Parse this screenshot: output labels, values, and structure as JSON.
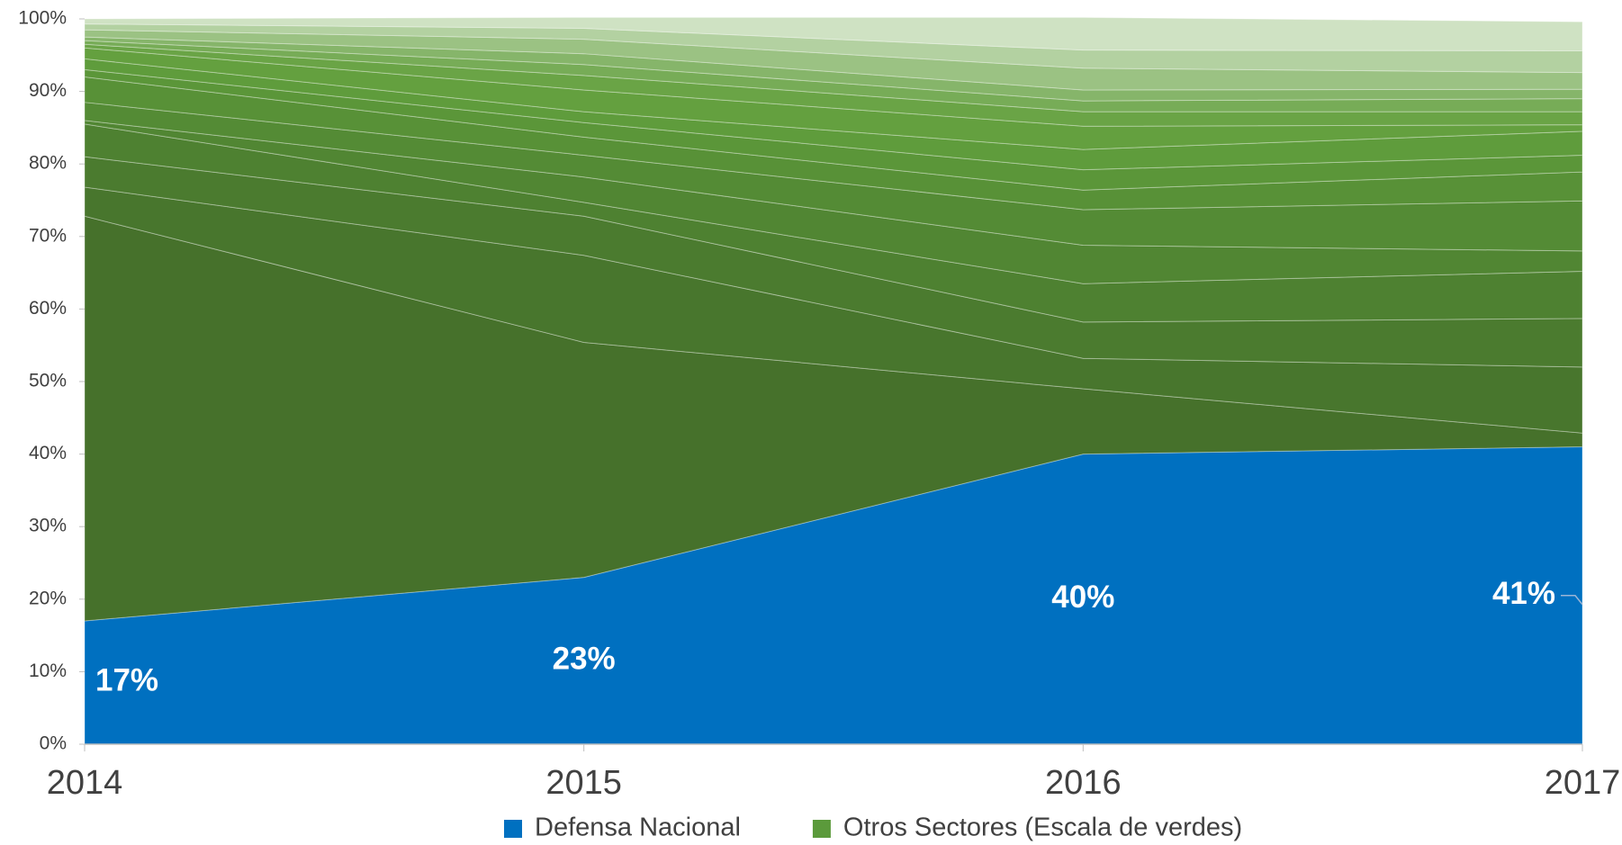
{
  "chart_data": {
    "type": "stacked_area_100",
    "x": [
      2014,
      2015,
      2016,
      2017
    ],
    "xlim": [
      2014,
      2017
    ],
    "xticks": [
      2014,
      2015,
      2016,
      2017
    ],
    "ylim": [
      0,
      100
    ],
    "yticks": [
      {
        "value": 0,
        "label": "0%"
      },
      {
        "value": 10,
        "label": "10%"
      },
      {
        "value": 20,
        "label": "20%"
      },
      {
        "value": 30,
        "label": "30%"
      },
      {
        "value": 40,
        "label": "40%"
      },
      {
        "value": 50,
        "label": "50%"
      },
      {
        "value": 60,
        "label": "60%"
      },
      {
        "value": 70,
        "label": "70%"
      },
      {
        "value": 80,
        "label": "80%"
      },
      {
        "value": 90,
        "label": "90%"
      },
      {
        "value": 100,
        "label": "100%"
      }
    ],
    "series": [
      {
        "name": "Defensa Nacional",
        "color": "#0070c0",
        "values": [
          17,
          23,
          40,
          41
        ],
        "value_labels": [
          "17%",
          "23%",
          "40%",
          "41%"
        ]
      },
      {
        "name": "Otros Sectores (Escala de verdes)",
        "color": "#5b9a3b",
        "layers": [
          {
            "color": "#46712b",
            "values": [
              55.8,
              32.4,
              9,
              1.9
            ]
          },
          {
            "color": "#48762d",
            "values": [
              4,
              12,
              4.2,
              9.1
            ]
          },
          {
            "color": "#4b7b2f",
            "values": [
              4.2,
              5.4,
              5,
              6.7
            ]
          },
          {
            "color": "#4e8131",
            "values": [
              4.5,
              1.9,
              5.3,
              6.5
            ]
          },
          {
            "color": "#518633",
            "values": [
              0.5,
              3.5,
              5.3,
              2.8
            ]
          },
          {
            "color": "#548b35",
            "values": [
              2.5,
              3,
              4.9,
              6.9
            ]
          },
          {
            "color": "#589137",
            "values": [
              3.5,
              2.5,
              2.7,
              4
            ]
          },
          {
            "color": "#5b9639",
            "values": [
              1,
              2,
              2.8,
              2.3
            ]
          },
          {
            "color": "#5f9c3c",
            "values": [
              1.5,
              1.5,
              2.8,
              3.3
            ]
          },
          {
            "color": "#64a03f",
            "values": [
              1.5,
              3,
              3.2,
              0.9
            ]
          },
          {
            "color": "#6aa446",
            "values": [
              0.5,
              2,
              2,
              1.8
            ]
          },
          {
            "color": "#77ac57",
            "values": [
              0.5,
              1.5,
              1.5,
              1.8
            ]
          },
          {
            "color": "#86b56a",
            "values": [
              0.5,
              1.5,
              1.5,
              1.3
            ]
          },
          {
            "color": "#9bc283",
            "values": [
              1,
              2,
              3,
              2.3
            ]
          },
          {
            "color": "#b3d1a1",
            "values": [
              0.8,
              1.5,
              2.5,
              3
            ]
          },
          {
            "color": "#cfe2c3",
            "values": [
              0.7,
              1.5,
              4.5,
              4
            ]
          }
        ]
      }
    ]
  }
}
